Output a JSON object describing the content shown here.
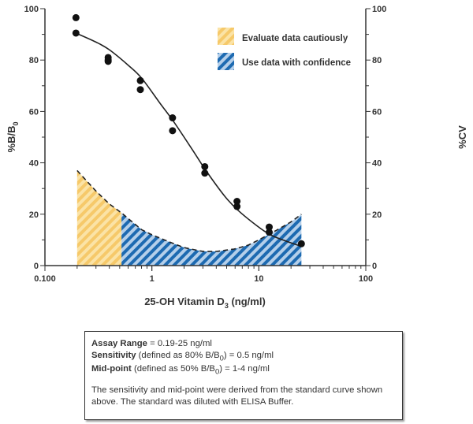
{
  "chart_data": {
    "type": "scatter",
    "xlabel": "25-OH Vitamin D3 (ng/ml)",
    "xlabel_main": "25-OH Vitamin D",
    "xlabel_sub": "3",
    "xlabel_tail": " (ng/ml)",
    "ylabel_main": "%B/B",
    "ylabel_sub": "0",
    "y2label": "%CV",
    "xscale": "log",
    "xlim": [
      0.1,
      100
    ],
    "ylim": [
      0,
      100
    ],
    "y2lim": [
      0,
      100
    ],
    "xticks": [
      {
        "v": 0.1,
        "label": "0.100"
      },
      {
        "v": 1,
        "label": "1"
      },
      {
        "v": 10,
        "label": "10"
      },
      {
        "v": 100,
        "label": "100"
      }
    ],
    "yticks": [
      "0",
      "20",
      "40",
      "60",
      "80",
      "100"
    ],
    "grid": false,
    "legend": {
      "placement": "top-right",
      "items": [
        {
          "label": "Evaluate data cautiously",
          "color": "#f9d58a"
        },
        {
          "label": "Use data with confidence",
          "color": "#1e6db3"
        }
      ]
    },
    "points": {
      "x": [
        0.195,
        0.195,
        0.39,
        0.39,
        0.39,
        0.78,
        0.78,
        1.56,
        1.56,
        3.125,
        3.125,
        6.25,
        6.25,
        12.5,
        12.5,
        25
      ],
      "y": [
        96.5,
        90.5,
        81,
        79.5,
        80,
        72,
        68.5,
        57.5,
        52.5,
        38.5,
        36,
        25,
        23,
        15,
        13,
        8.5
      ]
    },
    "fit_curve": {
      "x": [
        0.195,
        0.3,
        0.4,
        0.6,
        0.8,
        1.2,
        1.6,
        2.4,
        3.2,
        4.8,
        6.4,
        9.6,
        12.8,
        18,
        25
      ],
      "y": [
        90.5,
        87,
        84,
        78,
        73,
        63,
        56,
        45,
        37,
        27,
        21.5,
        15.5,
        12,
        9.5,
        7.5
      ]
    },
    "cv_curve": {
      "x": [
        0.2,
        0.3,
        0.4,
        0.52,
        0.8,
        1,
        1.5,
        2,
        3,
        4,
        6,
        8,
        10,
        15,
        20,
        25
      ],
      "y": [
        37,
        29,
        24,
        20.5,
        14,
        12,
        9,
        7,
        5.5,
        5.5,
        6.5,
        8,
        10,
        14,
        17,
        20
      ]
    },
    "caution_range": [
      0.2,
      0.52
    ],
    "confidence_range": [
      0.52,
      25
    ]
  },
  "info": {
    "assay_label": "Assay Range",
    "assay_value": " = 0.19-25 ng/ml",
    "sens_label": "Sensitivity",
    "sens_pre": " (defined as 80% B/B",
    "sens_sub": "0",
    "sens_post": ") = 0.5 ng/ml",
    "mid_label": "Mid-point",
    "mid_pre": " (defined as 50% B/B",
    "mid_sub": "0",
    "mid_post": ") = 1-4 ng/ml",
    "note": "The sensitivity and mid-point were derived from the standard curve shown above. The standard was diluted with ELISA Buffer."
  }
}
